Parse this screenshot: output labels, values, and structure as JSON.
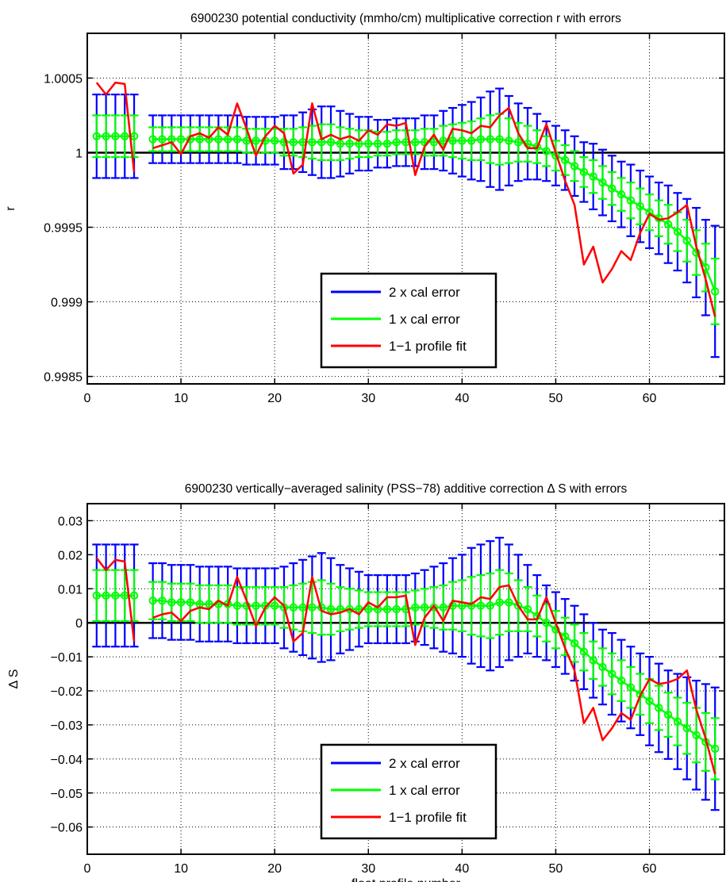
{
  "colors": {
    "two_sigma": "#0000ff",
    "one_sigma": "#00ff00",
    "fit": "#ff0000",
    "axis": "#000000",
    "grid": "#000000"
  },
  "chart_data": [
    {
      "type": "line",
      "title": "6900230 potential conductivity (mmho/cm) multiplicative correction r with errors",
      "xlabel": "",
      "ylabel": "r",
      "xlim": [
        0,
        68
      ],
      "ylim": [
        0.99845,
        1.0008
      ],
      "xticks": [
        0,
        10,
        20,
        30,
        40,
        50,
        60
      ],
      "yticks": [
        {
          "v": 0.9985,
          "label": "0.9985"
        },
        {
          "v": 0.999,
          "label": "0.999"
        },
        {
          "v": 0.9995,
          "label": "0.9995"
        },
        {
          "v": 1.0,
          "label": "1"
        },
        {
          "v": 1.0005,
          "label": "1.0005"
        }
      ],
      "grid": true,
      "reference_line": 1.0,
      "legend_position": "lower-center",
      "legend": [
        "2 x cal error",
        "1 x cal error",
        "1−1 profile fit"
      ],
      "x": [
        1,
        2,
        3,
        4,
        5,
        6,
        7,
        8,
        9,
        10,
        11,
        12,
        13,
        14,
        15,
        16,
        17,
        18,
        19,
        20,
        21,
        22,
        23,
        24,
        25,
        26,
        27,
        28,
        29,
        30,
        31,
        32,
        33,
        34,
        35,
        36,
        37,
        38,
        39,
        40,
        41,
        42,
        43,
        44,
        45,
        46,
        47,
        48,
        49,
        50,
        51,
        52,
        53,
        54,
        55,
        56,
        57,
        58,
        59,
        60,
        61,
        62,
        63,
        64,
        65,
        66,
        67
      ],
      "series": [
        {
          "name": "1 x cal error",
          "values": [
            1.00011,
            1.00011,
            1.00011,
            1.00011,
            1.00011,
            null,
            1.00009,
            1.00009,
            1.00009,
            1.00009,
            1.00009,
            1.00009,
            1.00009,
            1.00009,
            1.00009,
            1.00009,
            1.00008,
            1.00008,
            1.00008,
            1.00008,
            1.00007,
            1.00007,
            1.00007,
            1.00007,
            1.00007,
            1.00007,
            1.00006,
            1.00006,
            1.00006,
            1.00006,
            1.00006,
            1.00006,
            1.00007,
            1.00007,
            1.00007,
            1.00007,
            1.00007,
            1.00008,
            1.00008,
            1.00008,
            1.00008,
            1.00009,
            1.00009,
            1.00009,
            1.00008,
            1.00007,
            1.00006,
            1.00004,
            1.00001,
            0.99998,
            0.99995,
            0.99991,
            0.99987,
            0.99984,
            0.9998,
            0.99976,
            0.99972,
            0.99968,
            0.99964,
            0.9996,
            0.99956,
            0.99952,
            0.99947,
            0.99941,
            0.99933,
            0.99923,
            0.99907
          ],
          "err1": [
            0.00014,
            0.00014,
            0.00014,
            0.00014,
            0.00014,
            null,
            8e-05,
            8e-05,
            8e-05,
            8e-05,
            8e-05,
            8e-05,
            8e-05,
            8e-05,
            8e-05,
            8e-05,
            8e-05,
            8e-05,
            8e-05,
            8e-05,
            9e-05,
            9e-05,
            0.0001,
            0.00011,
            0.00012,
            0.00012,
            0.00011,
            0.0001,
            9e-05,
            9e-05,
            8e-05,
            8e-05,
            8e-05,
            8e-05,
            8e-05,
            9e-05,
            9e-05,
            0.0001,
            0.00011,
            0.00012,
            0.00013,
            0.00014,
            0.00016,
            0.00017,
            0.00015,
            0.00013,
            0.00012,
            0.00011,
            0.0001,
            0.0001,
            0.0001,
            0.0001,
            0.0001,
            0.00011,
            0.00011,
            0.00011,
            0.00011,
            0.00012,
            0.00012,
            0.00012,
            0.00012,
            0.00013,
            0.00013,
            0.00014,
            0.00015,
            0.00016,
            0.00022
          ]
        },
        {
          "name": "1−1 profile fit",
          "values": [
            1.00047,
            1.00039,
            1.00047,
            1.00046,
            0.99987,
            null,
            1.00003,
            1.00005,
            1.00007,
            0.99999,
            1.00011,
            1.00013,
            1.0001,
            1.00017,
            1.00012,
            1.00033,
            1.00016,
            0.99998,
            1.00011,
            1.00018,
            1.00013,
            0.99986,
            0.99992,
            1.00033,
            1.00009,
            1.00012,
            1.00009,
            1.00011,
            1.00008,
            1.00015,
            1.00012,
            1.00019,
            1.00018,
            1.0002,
            0.99985,
            1.00004,
            1.00012,
            1.00002,
            1.00016,
            1.00015,
            1.00013,
            1.00018,
            1.00017,
            1.00025,
            1.0003,
            1.00013,
            1.00003,
            1.00003,
            1.00019,
            1.0,
            0.99981,
            0.99965,
            0.99925,
            0.99937,
            0.99913,
            0.99922,
            0.99934,
            0.99928,
            0.99946,
            0.99959,
            0.99955,
            0.99956,
            0.9996,
            0.99965,
            0.99937,
            0.99915,
            0.9989
          ]
        }
      ]
    },
    {
      "type": "line",
      "title": "6900230 vertically−averaged salinity (PSS−78) additive correction Δ S with errors",
      "xlabel": "float profile number",
      "ylabel": "Δ S",
      "xlim": [
        0,
        68
      ],
      "ylim": [
        -0.068,
        0.035
      ],
      "xticks": [
        0,
        10,
        20,
        30,
        40,
        50,
        60
      ],
      "yticks": [
        {
          "v": -0.06,
          "label": "−0.06"
        },
        {
          "v": -0.05,
          "label": "−0.05"
        },
        {
          "v": -0.04,
          "label": "−0.04"
        },
        {
          "v": -0.03,
          "label": "−0.03"
        },
        {
          "v": -0.02,
          "label": "−0.02"
        },
        {
          "v": -0.01,
          "label": "−0.01"
        },
        {
          "v": 0,
          "label": "0"
        },
        {
          "v": 0.01,
          "label": "0.01"
        },
        {
          "v": 0.02,
          "label": "0.02"
        },
        {
          "v": 0.03,
          "label": "0.03"
        }
      ],
      "grid": true,
      "reference_line": 0,
      "legend_position": "lower-center",
      "legend": [
        "2 x cal error",
        "1 x cal error",
        "1−1 profile fit"
      ],
      "x": [
        1,
        2,
        3,
        4,
        5,
        6,
        7,
        8,
        9,
        10,
        11,
        12,
        13,
        14,
        15,
        16,
        17,
        18,
        19,
        20,
        21,
        22,
        23,
        24,
        25,
        26,
        27,
        28,
        29,
        30,
        31,
        32,
        33,
        34,
        35,
        36,
        37,
        38,
        39,
        40,
        41,
        42,
        43,
        44,
        45,
        46,
        47,
        48,
        49,
        50,
        51,
        52,
        53,
        54,
        55,
        56,
        57,
        58,
        59,
        60,
        61,
        62,
        63,
        64,
        65,
        66,
        67
      ],
      "series": [
        {
          "name": "1 x cal error",
          "values": [
            0.008,
            0.008,
            0.008,
            0.008,
            0.008,
            null,
            0.0065,
            0.0065,
            0.006,
            0.006,
            0.006,
            0.0055,
            0.0055,
            0.0055,
            0.0055,
            0.005,
            0.005,
            0.005,
            0.005,
            0.005,
            0.0045,
            0.0045,
            0.0045,
            0.0045,
            0.0045,
            0.004,
            0.004,
            0.004,
            0.004,
            0.004,
            0.004,
            0.004,
            0.004,
            0.004,
            0.0045,
            0.0045,
            0.0045,
            0.0045,
            0.005,
            0.005,
            0.005,
            0.005,
            0.005,
            0.006,
            0.006,
            0.005,
            0.004,
            0.002,
            0.0,
            -0.002,
            -0.004,
            -0.006,
            -0.0085,
            -0.011,
            -0.013,
            -0.015,
            -0.017,
            -0.019,
            -0.021,
            -0.023,
            -0.025,
            -0.027,
            -0.029,
            -0.031,
            -0.033,
            -0.035,
            -0.037
          ],
          "err1": [
            0.0075,
            0.0075,
            0.0075,
            0.0075,
            0.0075,
            null,
            0.0055,
            0.0055,
            0.0055,
            0.0055,
            0.0055,
            0.0055,
            0.0055,
            0.0055,
            0.0055,
            0.0055,
            0.0055,
            0.0055,
            0.0055,
            0.0055,
            0.006,
            0.0065,
            0.007,
            0.0075,
            0.008,
            0.0075,
            0.0065,
            0.006,
            0.0055,
            0.005,
            0.005,
            0.005,
            0.005,
            0.005,
            0.005,
            0.0055,
            0.006,
            0.0065,
            0.007,
            0.0075,
            0.0085,
            0.009,
            0.0095,
            0.0095,
            0.0085,
            0.0075,
            0.0065,
            0.006,
            0.0055,
            0.0055,
            0.0055,
            0.0055,
            0.0055,
            0.0055,
            0.0055,
            0.006,
            0.006,
            0.006,
            0.006,
            0.0065,
            0.0065,
            0.0065,
            0.007,
            0.0075,
            0.008,
            0.0085,
            0.009
          ]
        },
        {
          "name": "1−1 profile fit",
          "values": [
            0.019,
            0.0155,
            0.0185,
            0.018,
            -0.0055,
            null,
            0.0015,
            0.0025,
            0.003,
            0.0005,
            0.0035,
            0.0045,
            0.004,
            0.0065,
            0.005,
            0.0135,
            0.0065,
            -0.001,
            0.0045,
            0.0075,
            0.005,
            -0.0055,
            -0.003,
            0.0135,
            0.0035,
            0.0025,
            0.003,
            0.004,
            0.0025,
            0.006,
            0.0045,
            0.0075,
            0.0075,
            0.008,
            -0.0065,
            0.0015,
            0.005,
            0.0005,
            0.0065,
            0.006,
            0.0055,
            0.0075,
            0.007,
            0.0105,
            0.011,
            0.005,
            0.001,
            0.001,
            0.0075,
            0.0,
            -0.0075,
            -0.014,
            -0.0295,
            -0.025,
            -0.0345,
            -0.031,
            -0.0265,
            -0.0285,
            -0.0215,
            -0.0165,
            -0.018,
            -0.0175,
            -0.0165,
            -0.014,
            -0.0255,
            -0.034,
            -0.0445
          ]
        }
      ]
    }
  ]
}
